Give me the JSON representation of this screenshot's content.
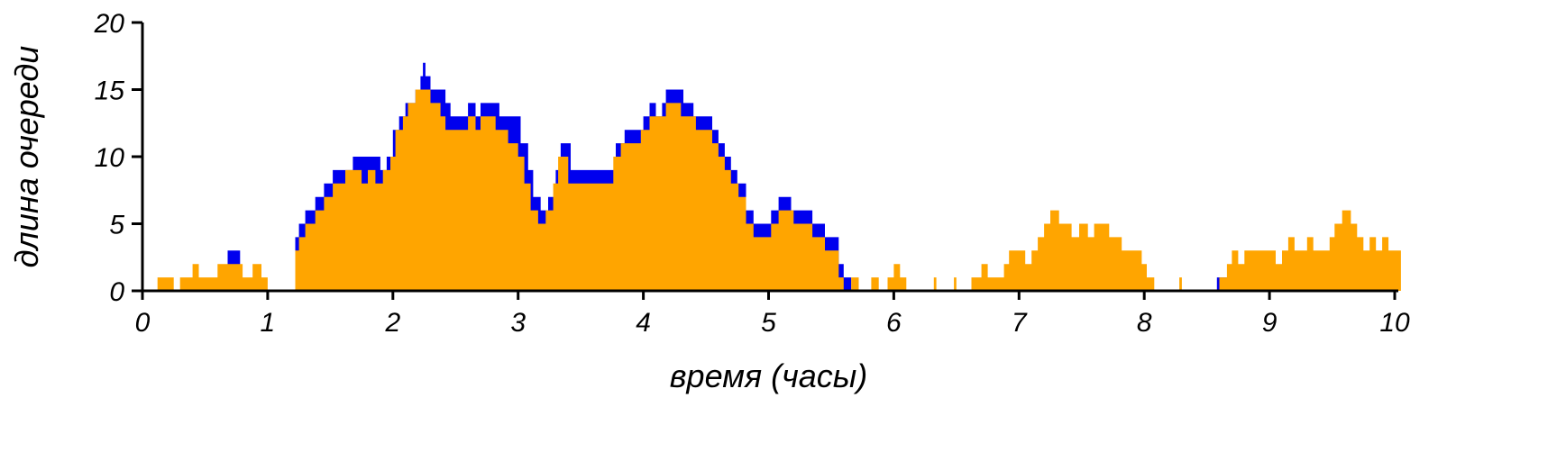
{
  "chart_data": {
    "type": "area",
    "xlabel": "время (часы)",
    "ylabel": "длина очереди",
    "xlim": [
      0,
      10
    ],
    "ylim": [
      0,
      20
    ],
    "x_ticks": [
      "0",
      "1",
      "2",
      "3",
      "4",
      "5",
      "6",
      "7",
      "8",
      "9",
      "10"
    ],
    "y_ticks": [
      "0",
      "5",
      "10",
      "15",
      "20"
    ],
    "grid": false,
    "legend": "none",
    "series": [
      {
        "color": "#0000ee",
        "envelope_max": [
          [
            0.0,
            0
          ],
          [
            0.65,
            0
          ],
          [
            0.68,
            3
          ],
          [
            0.76,
            3
          ],
          [
            0.78,
            0
          ],
          [
            1.2,
            0
          ],
          [
            1.22,
            4
          ],
          [
            1.25,
            5
          ],
          [
            1.3,
            6
          ],
          [
            1.38,
            7
          ],
          [
            1.45,
            8
          ],
          [
            1.52,
            9
          ],
          [
            1.62,
            9
          ],
          [
            1.68,
            10
          ],
          [
            1.78,
            10
          ],
          [
            1.82,
            10
          ],
          [
            1.9,
            9
          ],
          [
            1.95,
            10
          ],
          [
            2.0,
            12
          ],
          [
            2.05,
            13
          ],
          [
            2.1,
            14
          ],
          [
            2.18,
            15
          ],
          [
            2.22,
            16
          ],
          [
            2.24,
            17
          ],
          [
            2.26,
            16
          ],
          [
            2.3,
            15
          ],
          [
            2.38,
            15
          ],
          [
            2.42,
            14
          ],
          [
            2.46,
            13
          ],
          [
            2.5,
            13
          ],
          [
            2.6,
            14
          ],
          [
            2.66,
            13
          ],
          [
            2.7,
            14
          ],
          [
            2.75,
            14
          ],
          [
            2.85,
            13
          ],
          [
            2.95,
            13
          ],
          [
            3.02,
            11
          ],
          [
            3.08,
            9
          ],
          [
            3.12,
            7
          ],
          [
            3.18,
            6
          ],
          [
            3.24,
            7
          ],
          [
            3.3,
            9
          ],
          [
            3.34,
            11
          ],
          [
            3.38,
            11
          ],
          [
            3.42,
            9
          ],
          [
            3.5,
            9
          ],
          [
            3.7,
            9
          ],
          [
            3.78,
            11
          ],
          [
            3.85,
            12
          ],
          [
            3.95,
            12
          ],
          [
            4.0,
            13
          ],
          [
            4.05,
            14
          ],
          [
            4.1,
            13
          ],
          [
            4.15,
            14
          ],
          [
            4.18,
            15
          ],
          [
            4.28,
            15
          ],
          [
            4.32,
            14
          ],
          [
            4.4,
            13
          ],
          [
            4.5,
            13
          ],
          [
            4.55,
            12
          ],
          [
            4.6,
            11
          ],
          [
            4.65,
            10
          ],
          [
            4.7,
            9
          ],
          [
            4.75,
            8
          ],
          [
            4.82,
            6
          ],
          [
            4.88,
            5
          ],
          [
            4.96,
            5
          ],
          [
            5.02,
            6
          ],
          [
            5.08,
            7
          ],
          [
            5.12,
            7
          ],
          [
            5.18,
            6
          ],
          [
            5.3,
            6
          ],
          [
            5.35,
            5
          ],
          [
            5.45,
            4
          ],
          [
            5.52,
            4
          ],
          [
            5.56,
            2
          ],
          [
            5.6,
            1
          ],
          [
            5.66,
            0
          ],
          [
            5.98,
            0
          ],
          [
            6.0,
            1
          ],
          [
            6.04,
            0
          ],
          [
            6.9,
            0
          ],
          [
            6.94,
            1
          ],
          [
            6.98,
            0
          ],
          [
            7.28,
            0
          ],
          [
            7.31,
            1
          ],
          [
            7.34,
            0
          ],
          [
            8.55,
            0
          ],
          [
            8.58,
            1
          ],
          [
            8.72,
            1
          ],
          [
            8.75,
            0
          ],
          [
            9.2,
            0
          ],
          [
            9.22,
            2
          ],
          [
            9.28,
            2
          ],
          [
            9.3,
            1
          ],
          [
            9.3,
            1
          ],
          [
            9.6,
            1
          ],
          [
            9.62,
            0
          ],
          [
            9.98,
            0
          ],
          [
            10.0,
            1
          ],
          [
            10.02,
            0
          ]
        ]
      },
      {
        "color": "#ffa500",
        "envelope_max": [
          [
            0.0,
            0
          ],
          [
            0.1,
            0
          ],
          [
            0.12,
            1
          ],
          [
            0.2,
            1
          ],
          [
            0.25,
            0
          ],
          [
            0.3,
            1
          ],
          [
            0.38,
            1
          ],
          [
            0.4,
            2
          ],
          [
            0.45,
            1
          ],
          [
            0.55,
            1
          ],
          [
            0.6,
            2
          ],
          [
            0.65,
            2
          ],
          [
            0.7,
            2
          ],
          [
            0.75,
            2
          ],
          [
            0.8,
            1
          ],
          [
            0.88,
            2
          ],
          [
            0.95,
            1
          ],
          [
            1.0,
            0
          ],
          [
            1.18,
            0
          ],
          [
            1.22,
            3
          ],
          [
            1.25,
            4
          ],
          [
            1.3,
            5
          ],
          [
            1.38,
            6
          ],
          [
            1.45,
            7
          ],
          [
            1.52,
            8
          ],
          [
            1.58,
            8
          ],
          [
            1.62,
            9
          ],
          [
            1.68,
            9
          ],
          [
            1.75,
            8
          ],
          [
            1.8,
            9
          ],
          [
            1.86,
            8
          ],
          [
            1.92,
            9
          ],
          [
            1.98,
            10
          ],
          [
            2.02,
            12
          ],
          [
            2.08,
            13
          ],
          [
            2.12,
            14
          ],
          [
            2.18,
            15
          ],
          [
            2.24,
            15
          ],
          [
            2.3,
            14
          ],
          [
            2.38,
            13
          ],
          [
            2.42,
            12
          ],
          [
            2.5,
            12
          ],
          [
            2.6,
            13
          ],
          [
            2.66,
            12
          ],
          [
            2.7,
            13
          ],
          [
            2.75,
            13
          ],
          [
            2.82,
            12
          ],
          [
            2.92,
            11
          ],
          [
            3.0,
            10
          ],
          [
            3.05,
            8
          ],
          [
            3.1,
            6
          ],
          [
            3.16,
            5
          ],
          [
            3.22,
            6
          ],
          [
            3.28,
            8
          ],
          [
            3.32,
            10
          ],
          [
            3.36,
            10
          ],
          [
            3.4,
            8
          ],
          [
            3.5,
            8
          ],
          [
            3.7,
            8
          ],
          [
            3.76,
            10
          ],
          [
            3.82,
            11
          ],
          [
            3.92,
            11
          ],
          [
            3.98,
            12
          ],
          [
            4.05,
            13
          ],
          [
            4.12,
            13
          ],
          [
            4.18,
            14
          ],
          [
            4.25,
            14
          ],
          [
            4.3,
            13
          ],
          [
            4.42,
            12
          ],
          [
            4.5,
            12
          ],
          [
            4.55,
            11
          ],
          [
            4.6,
            10
          ],
          [
            4.65,
            9
          ],
          [
            4.7,
            8
          ],
          [
            4.76,
            7
          ],
          [
            4.82,
            5
          ],
          [
            4.88,
            4
          ],
          [
            4.95,
            4
          ],
          [
            5.02,
            5
          ],
          [
            5.08,
            6
          ],
          [
            5.14,
            6
          ],
          [
            5.2,
            5
          ],
          [
            5.3,
            5
          ],
          [
            5.35,
            4
          ],
          [
            5.45,
            3
          ],
          [
            5.52,
            3
          ],
          [
            5.56,
            1
          ],
          [
            5.6,
            0
          ],
          [
            5.66,
            1
          ],
          [
            5.72,
            0
          ],
          [
            5.82,
            1
          ],
          [
            5.88,
            0
          ],
          [
            5.95,
            1
          ],
          [
            6.0,
            2
          ],
          [
            6.05,
            1
          ],
          [
            6.1,
            0
          ],
          [
            6.3,
            0
          ],
          [
            6.32,
            1
          ],
          [
            6.34,
            0
          ],
          [
            6.45,
            0
          ],
          [
            6.48,
            1
          ],
          [
            6.5,
            0
          ],
          [
            6.6,
            0
          ],
          [
            6.62,
            1
          ],
          [
            6.66,
            1
          ],
          [
            6.7,
            2
          ],
          [
            6.75,
            1
          ],
          [
            6.82,
            1
          ],
          [
            6.88,
            2
          ],
          [
            6.92,
            3
          ],
          [
            7.0,
            3
          ],
          [
            7.05,
            2
          ],
          [
            7.1,
            3
          ],
          [
            7.15,
            4
          ],
          [
            7.2,
            5
          ],
          [
            7.25,
            6
          ],
          [
            7.32,
            5
          ],
          [
            7.38,
            5
          ],
          [
            7.42,
            4
          ],
          [
            7.48,
            5
          ],
          [
            7.55,
            4
          ],
          [
            7.6,
            5
          ],
          [
            7.66,
            5
          ],
          [
            7.72,
            4
          ],
          [
            7.78,
            4
          ],
          [
            7.82,
            3
          ],
          [
            7.92,
            3
          ],
          [
            7.98,
            2
          ],
          [
            8.02,
            1
          ],
          [
            8.06,
            1
          ],
          [
            8.08,
            0
          ],
          [
            8.25,
            0
          ],
          [
            8.28,
            1
          ],
          [
            8.3,
            0
          ],
          [
            8.58,
            0
          ],
          [
            8.6,
            1
          ],
          [
            8.66,
            2
          ],
          [
            8.7,
            3
          ],
          [
            8.75,
            2
          ],
          [
            8.8,
            3
          ],
          [
            8.85,
            3
          ],
          [
            8.92,
            3
          ],
          [
            9.0,
            3
          ],
          [
            9.05,
            2
          ],
          [
            9.1,
            3
          ],
          [
            9.15,
            4
          ],
          [
            9.2,
            3
          ],
          [
            9.25,
            3
          ],
          [
            9.3,
            4
          ],
          [
            9.35,
            3
          ],
          [
            9.42,
            3
          ],
          [
            9.48,
            4
          ],
          [
            9.52,
            5
          ],
          [
            9.58,
            6
          ],
          [
            9.65,
            5
          ],
          [
            9.7,
            4
          ],
          [
            9.75,
            3
          ],
          [
            9.8,
            4
          ],
          [
            9.85,
            3
          ],
          [
            9.9,
            4
          ],
          [
            9.95,
            3
          ],
          [
            10.0,
            3
          ],
          [
            10.05,
            2
          ]
        ]
      }
    ]
  }
}
